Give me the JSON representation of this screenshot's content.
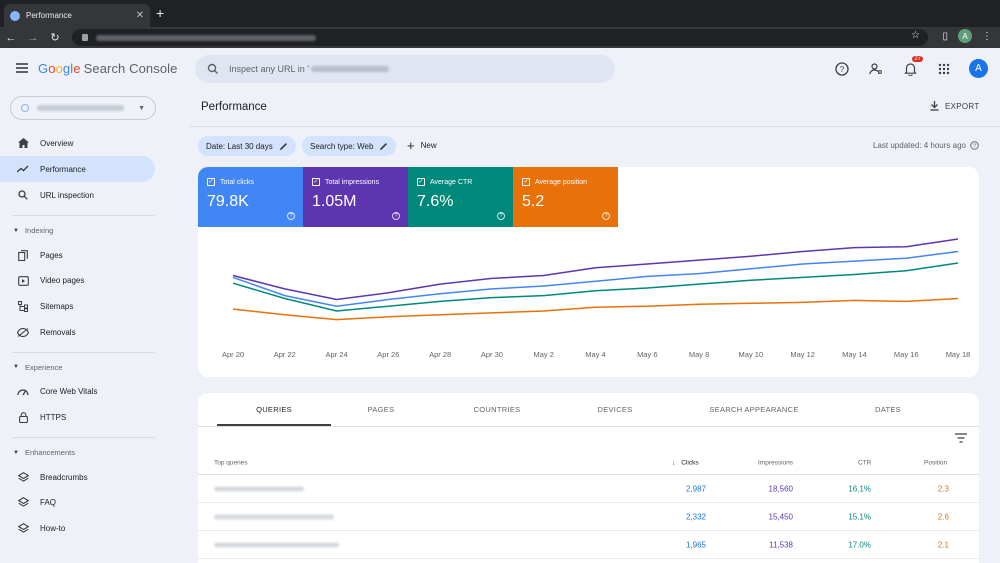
{
  "browser": {
    "tab_title": "Performance",
    "tab_close": "✕",
    "new_tab": "+",
    "profile_initial": "A"
  },
  "header": {
    "brand_letters": [
      "G",
      "o",
      "o",
      "g",
      "l",
      "e"
    ],
    "product": "Search Console",
    "search_placeholder": "Inspect any URL in '",
    "notification_count": "27",
    "avatar_initial": "A"
  },
  "sidebar": {
    "items": [
      {
        "label": "Overview",
        "icon": "home-icon",
        "active": false
      },
      {
        "label": "Performance",
        "icon": "trending-icon",
        "active": true
      },
      {
        "label": "URL inspection",
        "icon": "search-icon",
        "active": false
      }
    ],
    "sections": [
      {
        "title": "Indexing",
        "items": [
          {
            "label": "Pages",
            "icon": "pages-icon"
          },
          {
            "label": "Video pages",
            "icon": "video-icon"
          },
          {
            "label": "Sitemaps",
            "icon": "sitemap-icon"
          },
          {
            "label": "Removals",
            "icon": "removals-icon"
          }
        ]
      },
      {
        "title": "Experience",
        "items": [
          {
            "label": "Core Web Vitals",
            "icon": "gauge-icon"
          },
          {
            "label": "HTTPS",
            "icon": "lock-icon"
          }
        ]
      },
      {
        "title": "Enhancements",
        "items": [
          {
            "label": "Breadcrumbs",
            "icon": "layers-icon"
          },
          {
            "label": "FAQ",
            "icon": "layers-icon"
          },
          {
            "label": "How-to",
            "icon": "layers-icon"
          }
        ]
      }
    ]
  },
  "main": {
    "title": "Performance",
    "export_label": "EXPORT",
    "filters": {
      "date": "Date: Last 30 days",
      "search_type": "Search type: Web",
      "new": "New"
    },
    "last_updated": "Last updated: 4 hours ago"
  },
  "metrics": [
    {
      "label": "Total clicks",
      "value": "79.8K",
      "color": "#4285f4"
    },
    {
      "label": "Total impressions",
      "value": "1.05M",
      "color": "#5e35b1"
    },
    {
      "label": "Average CTR",
      "value": "7.6%",
      "color": "#00897b"
    },
    {
      "label": "Average position",
      "value": "5.2",
      "color": "#e8710a"
    }
  ],
  "chart_data": {
    "type": "line",
    "x": [
      "Apr 20",
      "Apr 22",
      "Apr 24",
      "Apr 26",
      "Apr 28",
      "Apr 30",
      "May 2",
      "May 4",
      "May 6",
      "May 8",
      "May 10",
      "May 12",
      "May 14",
      "May 16",
      "May 18"
    ],
    "series": [
      {
        "name": "Total impressions",
        "color": "#5e35b1",
        "values": [
          0.62,
          0.48,
          0.37,
          0.44,
          0.53,
          0.59,
          0.62,
          0.7,
          0.74,
          0.78,
          0.82,
          0.87,
          0.91,
          0.92,
          1.0
        ]
      },
      {
        "name": "Total clicks",
        "color": "#4285f4",
        "values": [
          0.6,
          0.41,
          0.3,
          0.37,
          0.43,
          0.48,
          0.51,
          0.56,
          0.61,
          0.64,
          0.69,
          0.74,
          0.77,
          0.8,
          0.87
        ]
      },
      {
        "name": "Average CTR",
        "color": "#00897b",
        "values": [
          0.54,
          0.38,
          0.25,
          0.3,
          0.35,
          0.39,
          0.41,
          0.46,
          0.49,
          0.53,
          0.57,
          0.6,
          0.63,
          0.67,
          0.75
        ]
      },
      {
        "name": "Average position",
        "color": "#e8710a",
        "values": [
          0.27,
          0.21,
          0.16,
          0.19,
          0.21,
          0.23,
          0.25,
          0.29,
          0.3,
          0.32,
          0.33,
          0.34,
          0.36,
          0.35,
          0.38
        ]
      }
    ],
    "ylim": [
      0,
      1
    ],
    "grid": false
  },
  "table": {
    "tabs": [
      "QUERIES",
      "PAGES",
      "COUNTRIES",
      "DEVICES",
      "SEARCH APPEARANCE",
      "DATES"
    ],
    "active_tab": 0,
    "columns": {
      "query": "Top queries",
      "clicks": "Clicks",
      "impressions": "Impressions",
      "ctr": "CTR",
      "position": "Position"
    },
    "rows": [
      {
        "clicks": "2,987",
        "impressions": "18,560",
        "ctr": "16.1%",
        "position": "2.3"
      },
      {
        "clicks": "2,332",
        "impressions": "15,450",
        "ctr": "15.1%",
        "position": "2.6"
      },
      {
        "clicks": "1,965",
        "impressions": "11,538",
        "ctr": "17.0%",
        "position": "2.1"
      }
    ]
  }
}
